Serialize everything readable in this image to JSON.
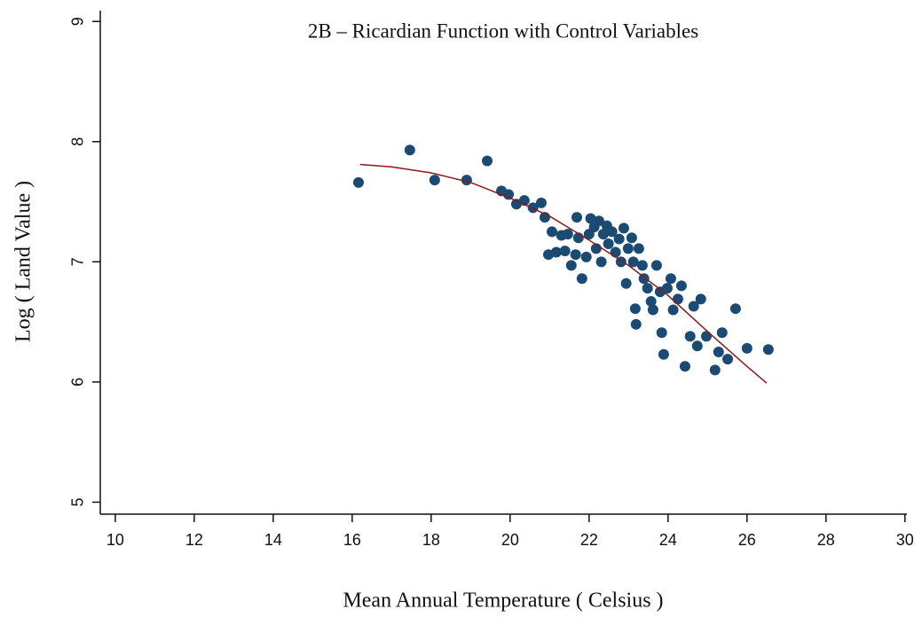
{
  "chart_data": {
    "type": "scatter",
    "title": "2B – Ricardian Function with Control Variables",
    "x_label": "Mean Annual Temperature ( Celsius )",
    "y_label": "Log ( Land Value )",
    "xlim": [
      9.62,
      30.05
    ],
    "ylim": [
      4.9,
      9.09
    ],
    "xticks": [
      10,
      12,
      14,
      16,
      18,
      20,
      22,
      24,
      26,
      28,
      30
    ],
    "yticks": [
      5,
      6,
      7,
      8,
      9
    ],
    "series": [
      {
        "color": "#1b4a73",
        "x": [
          16.16,
          17.46,
          18.09,
          18.9,
          19.42,
          19.78,
          19.96,
          20.16,
          20.36,
          20.58,
          20.79,
          20.88,
          21.06,
          20.97,
          21.17,
          21.3,
          21.46,
          21.39,
          21.55,
          21.66,
          21.73,
          21.69,
          21.82,
          21.93,
          22.0,
          22.04,
          22.13,
          22.18,
          22.25,
          22.31,
          22.36,
          22.45,
          22.49,
          22.58,
          22.67,
          22.76,
          22.81,
          22.88,
          22.94,
          22.99,
          23.08,
          23.12,
          23.17,
          23.19,
          23.26,
          23.35,
          23.39,
          23.48,
          23.57,
          23.62,
          23.71,
          23.8,
          23.84,
          23.89,
          23.98,
          24.07,
          24.13,
          24.25,
          24.34,
          24.43,
          24.56,
          24.65,
          24.74,
          24.83,
          24.97,
          25.19,
          25.28,
          25.37,
          25.51,
          25.71,
          26.0,
          26.54
        ],
        "values": [
          7.66,
          7.93,
          7.68,
          7.68,
          7.84,
          7.59,
          7.56,
          7.48,
          7.51,
          7.45,
          7.49,
          7.37,
          7.25,
          7.06,
          7.08,
          7.22,
          7.23,
          7.09,
          6.97,
          7.06,
          7.2,
          7.37,
          6.86,
          7.04,
          7.23,
          7.36,
          7.29,
          7.11,
          7.34,
          7.0,
          7.23,
          7.3,
          7.15,
          7.25,
          7.08,
          7.19,
          7.0,
          7.28,
          6.82,
          7.11,
          7.2,
          7.0,
          6.61,
          6.48,
          7.11,
          6.97,
          6.86,
          6.78,
          6.67,
          6.6,
          6.97,
          6.75,
          6.41,
          6.23,
          6.78,
          6.86,
          6.6,
          6.69,
          6.8,
          6.13,
          6.38,
          6.63,
          6.3,
          6.69,
          6.38,
          6.1,
          6.25,
          6.41,
          6.19,
          6.61,
          6.28,
          6.27
        ]
      }
    ],
    "fit": {
      "color": "#8b1a1a",
      "x": [
        16.2,
        17,
        18,
        19,
        20,
        21,
        22,
        23,
        24,
        25,
        26,
        26.5
      ],
      "values": [
        7.81,
        7.79,
        7.74,
        7.66,
        7.53,
        7.38,
        7.18,
        6.97,
        6.72,
        6.42,
        6.13,
        5.99
      ]
    }
  }
}
